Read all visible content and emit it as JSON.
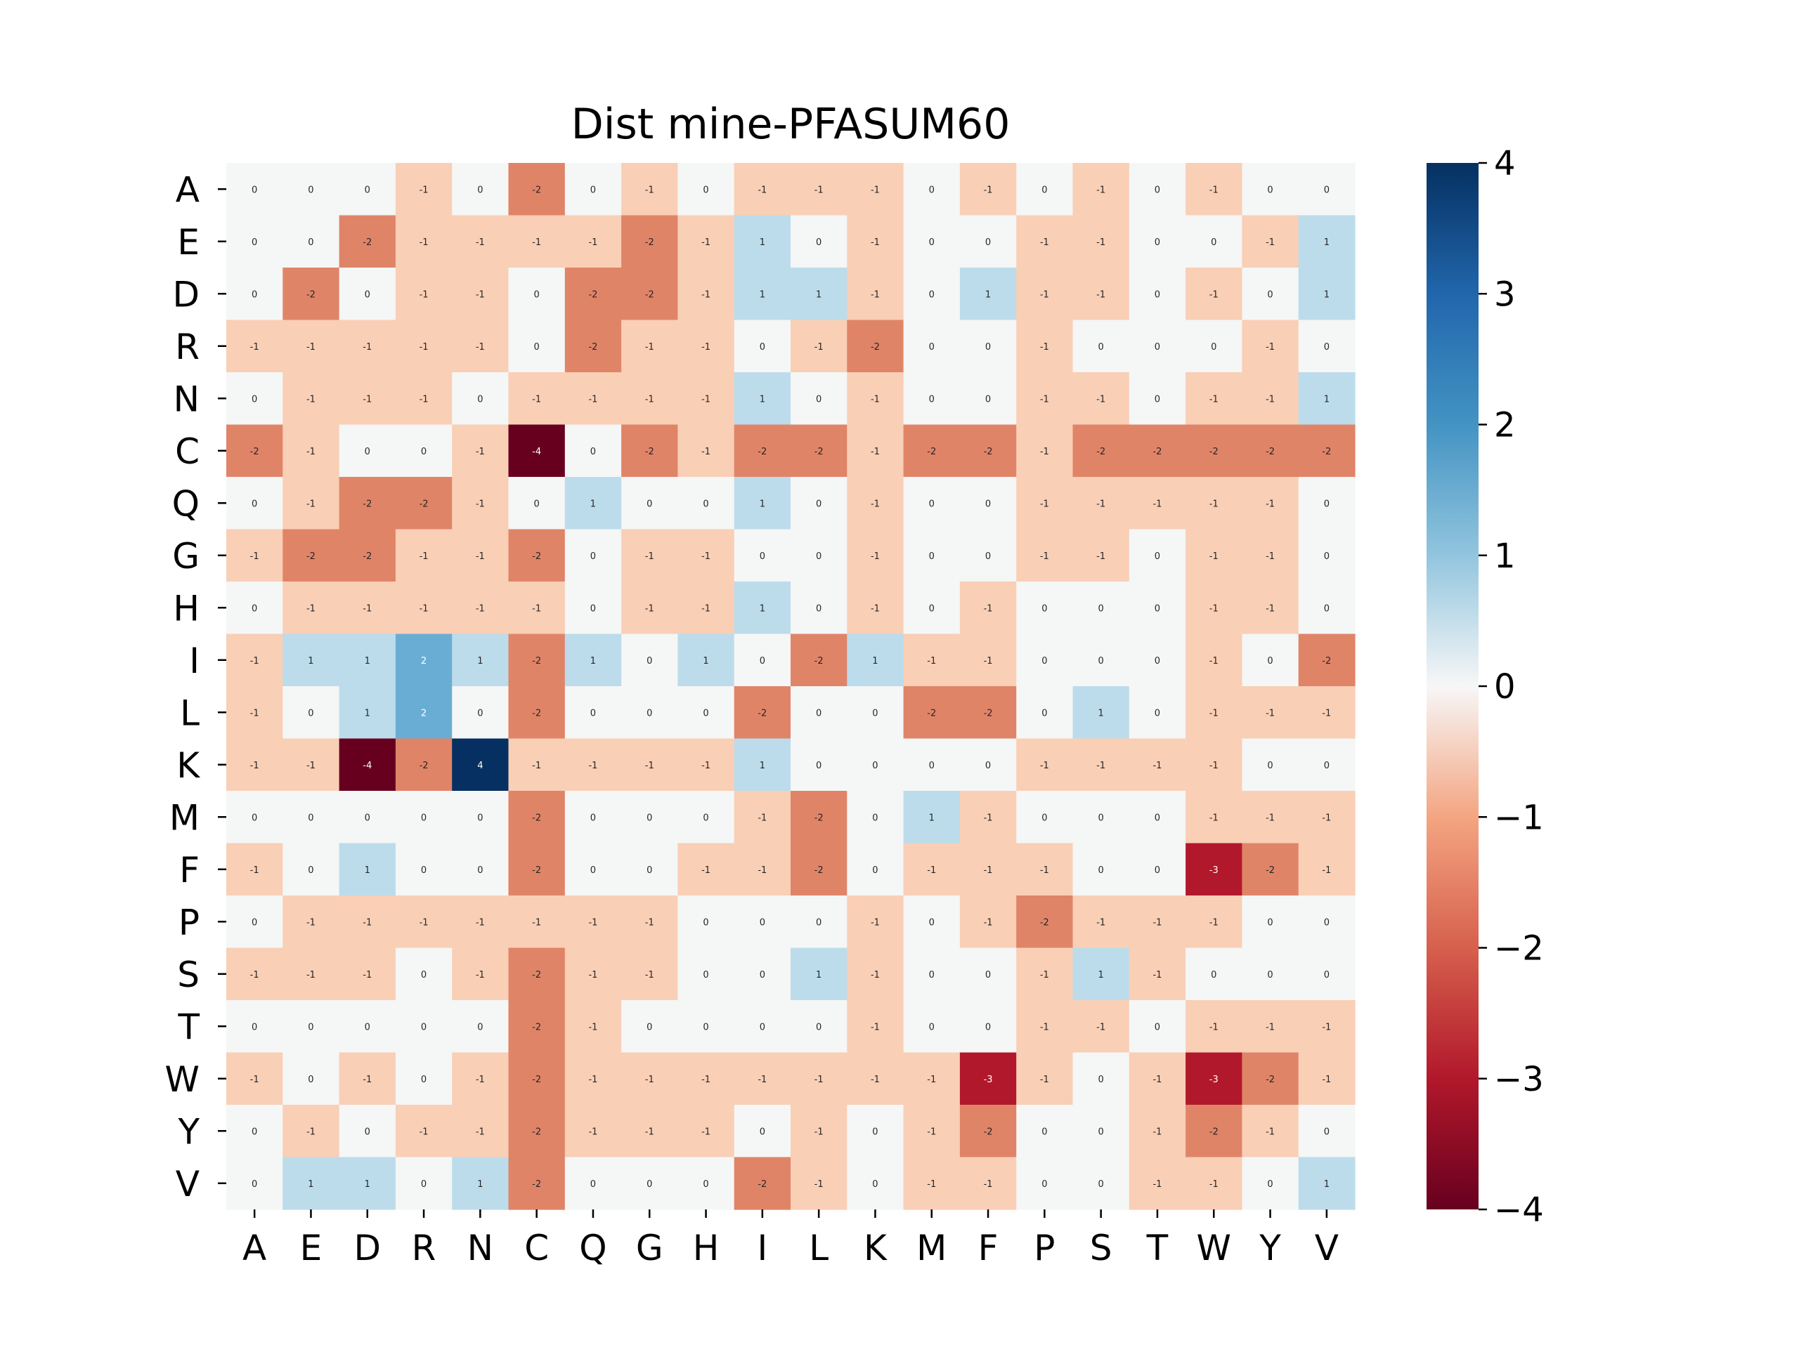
{
  "chart_data": {
    "type": "heatmap",
    "title": "Dist mine-PFASUM60",
    "xlabel": "",
    "ylabel": "",
    "x_categories": [
      "A",
      "E",
      "D",
      "R",
      "N",
      "C",
      "Q",
      "G",
      "H",
      "I",
      "L",
      "K",
      "M",
      "F",
      "P",
      "S",
      "T",
      "W",
      "Y",
      "V"
    ],
    "y_categories": [
      "A",
      "E",
      "D",
      "R",
      "N",
      "C",
      "Q",
      "G",
      "H",
      "I",
      "L",
      "K",
      "M",
      "F",
      "P",
      "S",
      "T",
      "W",
      "Y",
      "V"
    ],
    "values": [
      [
        0,
        0,
        0,
        -1,
        0,
        -2,
        0,
        -1,
        0,
        -1,
        -1,
        -1,
        0,
        -1,
        0,
        -1,
        0,
        -1,
        0,
        0
      ],
      [
        0,
        0,
        -2,
        -1,
        -1,
        -1,
        -1,
        -2,
        -1,
        1,
        0,
        -1,
        0,
        0,
        -1,
        -1,
        0,
        0,
        -1,
        1
      ],
      [
        0,
        -2,
        0,
        -1,
        -1,
        0,
        -2,
        -2,
        -1,
        1,
        1,
        -1,
        0,
        1,
        -1,
        -1,
        0,
        -1,
        0,
        1
      ],
      [
        -1,
        -1,
        -1,
        -1,
        -1,
        0,
        -2,
        -1,
        -1,
        0,
        -1,
        -2,
        0,
        0,
        -1,
        0,
        0,
        0,
        -1,
        0
      ],
      [
        0,
        -1,
        -1,
        -1,
        0,
        -1,
        -1,
        -1,
        -1,
        1,
        0,
        -1,
        0,
        0,
        -1,
        -1,
        0,
        -1,
        -1,
        1
      ],
      [
        -2,
        -1,
        0,
        0,
        -1,
        -4,
        0,
        -2,
        -1,
        -2,
        -2,
        -1,
        -2,
        -2,
        -1,
        -2,
        -2,
        -2,
        -2,
        -2
      ],
      [
        0,
        -1,
        -2,
        -2,
        -1,
        0,
        1,
        0,
        0,
        1,
        0,
        -1,
        0,
        0,
        -1,
        -1,
        -1,
        -1,
        -1,
        0
      ],
      [
        -1,
        -2,
        -2,
        -1,
        -1,
        -2,
        0,
        -1,
        -1,
        0,
        0,
        -1,
        0,
        0,
        -1,
        -1,
        0,
        -1,
        -1,
        0
      ],
      [
        0,
        -1,
        -1,
        -1,
        -1,
        -1,
        0,
        -1,
        -1,
        1,
        0,
        -1,
        0,
        -1,
        0,
        0,
        0,
        -1,
        -1,
        0
      ],
      [
        -1,
        1,
        1,
        2,
        1,
        -2,
        1,
        0,
        1,
        0,
        -2,
        1,
        -1,
        -1,
        0,
        0,
        0,
        -1,
        0,
        -2
      ],
      [
        -1,
        0,
        1,
        2,
        0,
        -2,
        0,
        0,
        0,
        -2,
        0,
        0,
        -2,
        -2,
        0,
        1,
        0,
        -1,
        -1,
        -1
      ],
      [
        -1,
        -1,
        -4,
        -2,
        4,
        -1,
        -1,
        -1,
        -1,
        1,
        0,
        0,
        0,
        0,
        -1,
        -1,
        -1,
        -1,
        0,
        0
      ],
      [
        0,
        0,
        0,
        0,
        0,
        -2,
        0,
        0,
        0,
        -1,
        -2,
        0,
        1,
        -1,
        0,
        0,
        0,
        -1,
        -1,
        -1
      ],
      [
        -1,
        0,
        1,
        0,
        0,
        -2,
        0,
        0,
        -1,
        -1,
        -2,
        0,
        -1,
        -1,
        -1,
        0,
        0,
        -3,
        -2,
        -1
      ],
      [
        0,
        -1,
        -1,
        -1,
        -1,
        -1,
        -1,
        -1,
        0,
        0,
        0,
        -1,
        0,
        -1,
        -2,
        -1,
        -1,
        -1,
        0,
        0
      ],
      [
        -1,
        -1,
        -1,
        0,
        -1,
        -2,
        -1,
        -1,
        0,
        0,
        1,
        -1,
        0,
        0,
        -1,
        1,
        -1,
        0,
        0,
        0
      ],
      [
        0,
        0,
        0,
        0,
        0,
        -2,
        -1,
        0,
        0,
        0,
        0,
        -1,
        0,
        0,
        -1,
        -1,
        0,
        -1,
        -1,
        -1
      ],
      [
        -1,
        0,
        -1,
        0,
        -1,
        -2,
        -1,
        -1,
        -1,
        -1,
        -1,
        -1,
        -1,
        -3,
        -1,
        0,
        -1,
        -3,
        -2,
        -1
      ],
      [
        0,
        -1,
        0,
        -1,
        -1,
        -2,
        -1,
        -1,
        -1,
        0,
        -1,
        0,
        -1,
        -2,
        0,
        0,
        -1,
        -2,
        -1,
        0
      ],
      [
        0,
        1,
        1,
        0,
        1,
        -2,
        0,
        0,
        0,
        -2,
        -1,
        0,
        -1,
        -1,
        0,
        0,
        -1,
        -1,
        0,
        1
      ]
    ],
    "colorscale": "RdBu",
    "vmin": -4,
    "vmax": 4,
    "colorbar_ticks": [
      "4",
      "3",
      "2",
      "1",
      "0",
      "−1",
      "−2",
      "−3",
      "−4"
    ],
    "colors": {
      "-4": "#67001f",
      "-3": "#b2182b",
      "-2": "#e08468",
      "-1": "#f9cfb6",
      "0": "#f5f6f6",
      "1": "#bcdceb",
      "2": "#6aadd4",
      "3": "#2166ac",
      "4": "#053061"
    }
  }
}
